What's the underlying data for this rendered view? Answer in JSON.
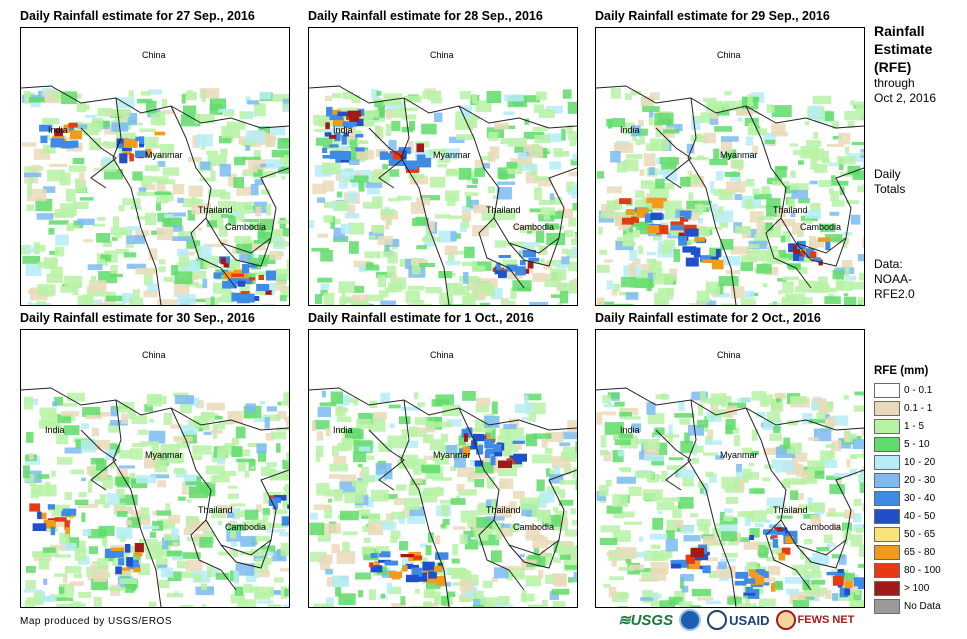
{
  "panels": [
    {
      "title": "Daily Rainfall estimate for 27 Sep., 2016",
      "labels": {
        "china": "China",
        "india": "India",
        "myanmar": "Myanmar",
        "thailand": "Thailand",
        "cambodia": "Cambodia"
      }
    },
    {
      "title": "Daily Rainfall estimate for 28 Sep., 2016",
      "labels": {
        "china": "China",
        "india": "India",
        "myanmar": "Myanmar",
        "thailand": "Thailand",
        "cambodia": "Cambodia"
      }
    },
    {
      "title": "Daily Rainfall estimate for 29 Sep., 2016",
      "labels": {
        "china": "China",
        "india": "India",
        "myanmar": "Myanmar",
        "thailand": "Thailand",
        "cambodia": "Cambodia"
      }
    },
    {
      "title": "Daily Rainfall estimate for 30 Sep., 2016",
      "labels": {
        "china": "China",
        "india": "India",
        "myanmar": "Myanmar",
        "thailand": "Thailand",
        "cambodia": "Cambodia"
      }
    },
    {
      "title": "Daily Rainfall estimate for 1 Oct., 2016",
      "labels": {
        "china": "China",
        "india": "India",
        "myanmar": "Myanmar",
        "thailand": "Thailand",
        "cambodia": "Cambodia"
      }
    },
    {
      "title": "Daily Rainfall estimate for 2 Oct., 2016",
      "labels": {
        "china": "China",
        "india": "India",
        "myanmar": "Myanmar",
        "thailand": "Thailand",
        "cambodia": "Cambodia"
      }
    }
  ],
  "sidebar": {
    "title_line1": "Rainfall",
    "title_line2": "Estimate",
    "title_line3": "(RFE)",
    "through": "through",
    "date": "Oct 2, 2016",
    "daily": "Daily",
    "totals": "Totals",
    "data_label": "Data:",
    "source_1": "NOAA-",
    "source_2": "RFE2.0"
  },
  "legend": {
    "title": "RFE (mm)",
    "items": [
      {
        "label": "0 - 0.1",
        "color": "#ffffff"
      },
      {
        "label": "0.1 - 1",
        "color": "#e9d9b9"
      },
      {
        "label": "1 - 5",
        "color": "#b6f2a4"
      },
      {
        "label": "5 - 10",
        "color": "#5fdc6a"
      },
      {
        "label": "10 - 20",
        "color": "#b6ecf6"
      },
      {
        "label": "20 - 30",
        "color": "#7bbbf0"
      },
      {
        "label": "30 - 40",
        "color": "#3e8be6"
      },
      {
        "label": "40 - 50",
        "color": "#1f4fc9"
      },
      {
        "label": "50 - 65",
        "color": "#f8e27a"
      },
      {
        "label": "65 - 80",
        "color": "#f29a1c"
      },
      {
        "label": "80 - 100",
        "color": "#e83a12"
      },
      {
        "label": "> 100",
        "color": "#a01a1a"
      },
      {
        "label": "No Data",
        "color": "#9a9a9a"
      }
    ]
  },
  "footer": {
    "credit": "Map produced by USGS/EROS",
    "logos": {
      "usgs": "USGS",
      "usaid": "USAID",
      "fews": "FEWS NET"
    }
  }
}
